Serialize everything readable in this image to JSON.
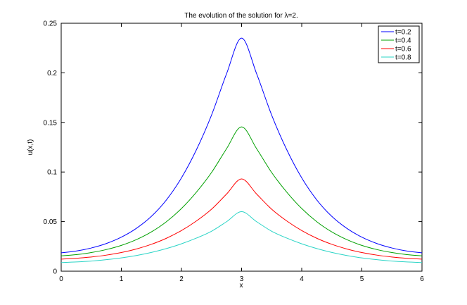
{
  "chart_data": {
    "type": "line",
    "title": "The evolution of the solution for λ=2.",
    "xlabel": "x",
    "ylabel": "u(x,t)",
    "xlim": [
      0,
      6
    ],
    "ylim": [
      0,
      0.25
    ],
    "xticks": [
      0,
      1,
      2,
      3,
      4,
      5,
      6
    ],
    "xtick_labels": [
      "0",
      "1",
      "2",
      "3",
      "4",
      "5",
      "6"
    ],
    "yticks": [
      0,
      0.05,
      0.1,
      0.15,
      0.2,
      0.25
    ],
    "ytick_labels": [
      "0",
      "0.05",
      "0.1",
      "0.15",
      "0.2",
      "0.25"
    ],
    "grid": false,
    "legend_position": "top-right",
    "x": [
      0,
      0.25,
      0.5,
      0.75,
      1.0,
      1.25,
      1.5,
      1.75,
      2.0,
      2.25,
      2.5,
      2.75,
      3.0,
      3.25,
      3.5,
      3.75,
      4.0,
      4.25,
      4.5,
      4.75,
      5.0,
      5.25,
      5.5,
      5.75,
      6.0
    ],
    "series": [
      {
        "name": "t=0.2",
        "color": "#0000ff",
        "values": [
          0.0185,
          0.0203,
          0.0234,
          0.0279,
          0.0343,
          0.0432,
          0.0553,
          0.0719,
          0.0941,
          0.1226,
          0.1574,
          0.1991,
          0.235,
          0.1991,
          0.1574,
          0.1226,
          0.0941,
          0.0719,
          0.0553,
          0.0432,
          0.0343,
          0.0279,
          0.0234,
          0.0203,
          0.0185
        ]
      },
      {
        "name": "t=0.4",
        "color": "#00a000",
        "values": [
          0.0155,
          0.0167,
          0.0188,
          0.0218,
          0.026,
          0.0318,
          0.0396,
          0.0499,
          0.0632,
          0.0798,
          0.0995,
          0.1235,
          0.1455,
          0.1235,
          0.0995,
          0.0798,
          0.0632,
          0.0499,
          0.0396,
          0.0318,
          0.026,
          0.0218,
          0.0188,
          0.0167,
          0.0155
        ]
      },
      {
        "name": "t=0.6",
        "color": "#ff0000",
        "values": [
          0.0122,
          0.013,
          0.0143,
          0.0162,
          0.0188,
          0.0224,
          0.0271,
          0.0332,
          0.041,
          0.0507,
          0.0625,
          0.0778,
          0.093,
          0.0778,
          0.0625,
          0.0507,
          0.041,
          0.0332,
          0.0271,
          0.0224,
          0.0188,
          0.0162,
          0.0143,
          0.013,
          0.0122
        ]
      },
      {
        "name": "t=0.8",
        "color": "#2ad4c6",
        "values": [
          0.0087,
          0.0093,
          0.0102,
          0.0116,
          0.0134,
          0.0158,
          0.0189,
          0.0228,
          0.0276,
          0.0334,
          0.0403,
          0.0499,
          0.06,
          0.0499,
          0.0403,
          0.0334,
          0.0276,
          0.0228,
          0.0189,
          0.0158,
          0.0134,
          0.0116,
          0.0102,
          0.0093,
          0.0087
        ]
      }
    ]
  }
}
